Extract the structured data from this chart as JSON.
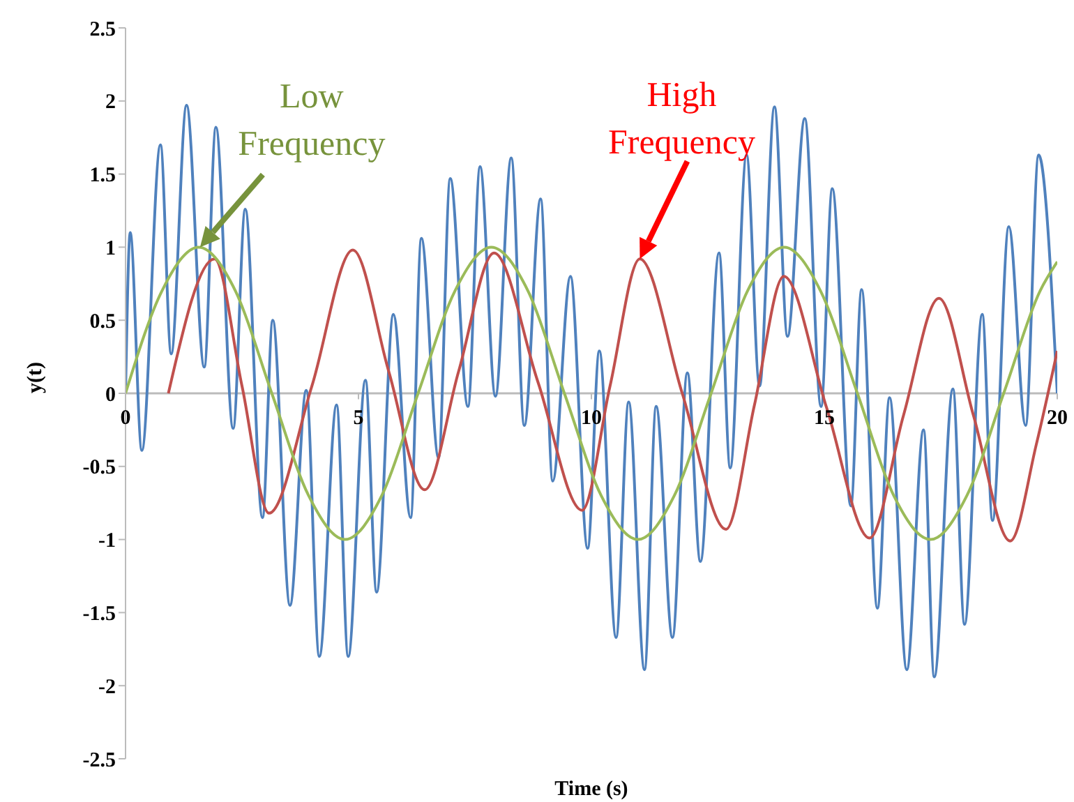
{
  "chart_data": {
    "type": "line",
    "xlabel": "Time (s)",
    "ylabel": "y(t)",
    "xlim": [
      0,
      20
    ],
    "xticks": [
      0,
      5,
      10,
      15,
      20
    ],
    "ylim": [
      -2.5,
      2.5
    ],
    "yticks": [
      -2.5,
      -2,
      -1.5,
      -1,
      -0.5,
      0,
      0.5,
      1,
      1.5,
      2,
      2.5
    ],
    "grid": false,
    "legend": false,
    "marker": "none",
    "line_style": "solid",
    "series": [
      {
        "color": "#4f81bd",
        "x": [
          0,
          0.1,
          0.35,
          0.75,
          0.98,
          1.31,
          1.69,
          1.94,
          2.31,
          2.57,
          2.94,
          3.16,
          3.53,
          3.88,
          4.16,
          4.53,
          4.78,
          5.15,
          5.39,
          5.75,
          6.12,
          6.35,
          6.72,
          6.97,
          7.35,
          7.61,
          7.94,
          8.28,
          8.56,
          8.91,
          9.17,
          9.55,
          9.92,
          10.17,
          10.53,
          10.8,
          11.14,
          11.39,
          11.74,
          12.06,
          12.34,
          12.74,
          12.98,
          13.33,
          13.61,
          13.93,
          14.21,
          14.58,
          14.93,
          15.17,
          15.57,
          15.8,
          16.14,
          16.4,
          16.77,
          17.13,
          17.36,
          17.76,
          18.01,
          18.39,
          18.61,
          18.96,
          19.32,
          19.6,
          20
        ],
        "values": [
          0,
          1.1,
          -0.39,
          1.7,
          0.27,
          1.97,
          0.18,
          1.82,
          -0.24,
          1.26,
          -0.85,
          0.5,
          -1.45,
          0.02,
          -1.8,
          -0.08,
          -1.8,
          0.09,
          -1.36,
          0.54,
          -0.85,
          1.06,
          -0.44,
          1.47,
          -0.09,
          1.55,
          -0.02,
          1.61,
          -0.22,
          1.33,
          -0.6,
          0.8,
          -1.06,
          0.29,
          -1.67,
          -0.06,
          -1.89,
          -0.09,
          -1.67,
          0.14,
          -1.15,
          0.96,
          -0.51,
          1.63,
          0.05,
          1.96,
          0.39,
          1.88,
          -0.09,
          1.4,
          -0.77,
          0.71,
          -1.47,
          -0.03,
          -1.89,
          -0.25,
          -1.94,
          0.03,
          -1.58,
          0.54,
          -0.87,
          1.14,
          -0.22,
          1.63,
          0
        ]
      },
      {
        "color": "#c0504d",
        "x": [
          0.92,
          1.91,
          2.5,
          3.08,
          4.0,
          4.88,
          5.65,
          6.42,
          7.15,
          7.91,
          8.85,
          9.8,
          10.4,
          11.04,
          11.95,
          12.89,
          13.5,
          14.13,
          15.05,
          15.97,
          16.7,
          17.46,
          18.2,
          18.99,
          19.55,
          20
        ],
        "values": [
          0,
          0.92,
          0.05,
          -0.82,
          0.05,
          0.98,
          0.15,
          -0.66,
          0.15,
          0.96,
          0.08,
          -0.8,
          0.05,
          0.92,
          0.0,
          -0.93,
          -0.08,
          0.8,
          -0.1,
          -0.99,
          -0.15,
          0.65,
          -0.15,
          -1.01,
          -0.35,
          0.29
        ]
      },
      {
        "color": "#9bbb59",
        "x": [
          0,
          0.78,
          1.57,
          2.36,
          3.14,
          3.93,
          4.71,
          5.5,
          6.28,
          7.07,
          7.85,
          8.64,
          9.42,
          10.21,
          11.0,
          11.78,
          12.57,
          13.35,
          14.14,
          14.92,
          15.71,
          16.49,
          17.28,
          18.06,
          18.85,
          19.63,
          20
        ],
        "values": [
          0,
          0.7,
          1.0,
          0.7,
          0,
          -0.7,
          -1.0,
          -0.7,
          0,
          0.7,
          1.0,
          0.7,
          0,
          -0.7,
          -1.0,
          -0.7,
          0,
          0.7,
          1.0,
          0.7,
          0,
          -0.7,
          -1.0,
          -0.7,
          0,
          0.7,
          0.9
        ]
      }
    ],
    "annotations": [
      {
        "text": "High Frequency",
        "x": 11.04,
        "y": 0.92
      },
      {
        "text": "Low Frequency",
        "x": 1.6,
        "y": 1.0
      }
    ]
  }
}
